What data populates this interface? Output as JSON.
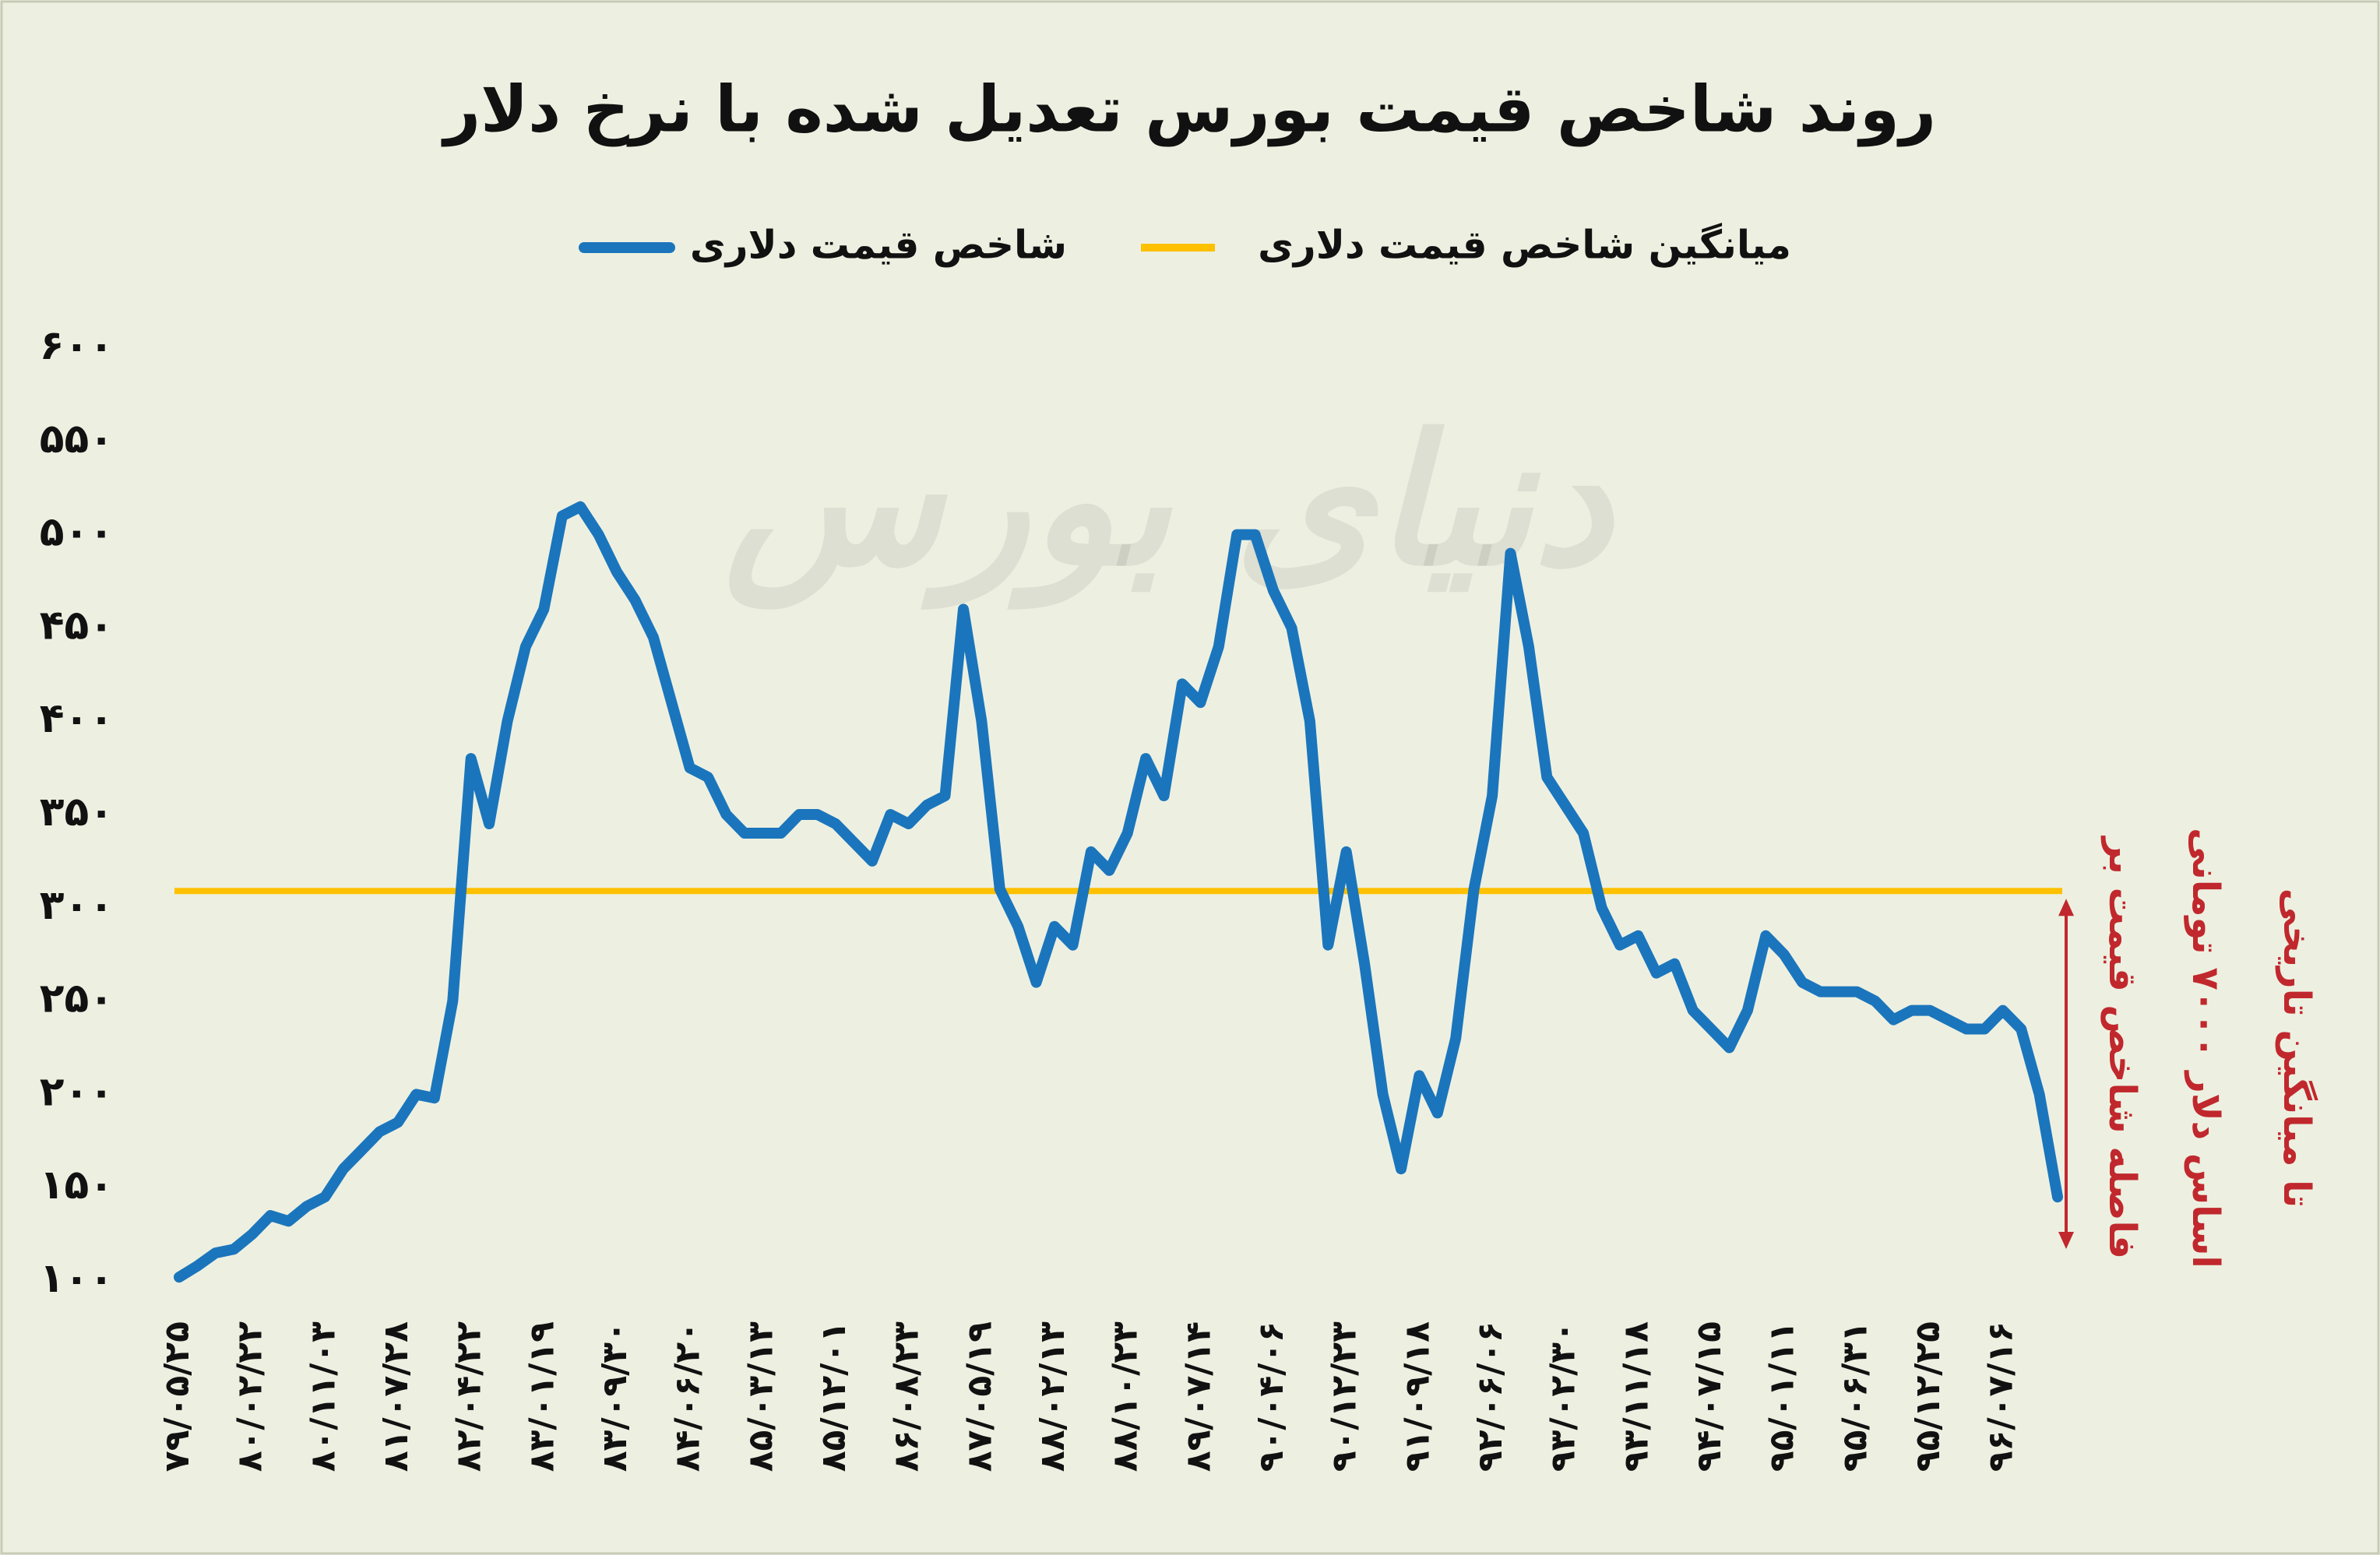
{
  "chart_data": {
    "type": "line",
    "title": "روند شاخص قیمت بورس تعدیل شده با نرخ دلار",
    "watermark": "دنیای بورس",
    "categories": [
      "۷۹/۰۵/۲۵",
      null,
      null,
      null,
      "۸۰/۰۲/۲۲",
      null,
      null,
      null,
      "۸۰/۱۱/۰۳",
      null,
      null,
      null,
      "۸۱/۰۷/۲۸",
      null,
      null,
      null,
      "۸۲/۰۴/۲۲",
      null,
      null,
      null,
      "۸۳/۰۱/۱۹",
      null,
      null,
      null,
      "۸۳/۰۹/۳۰",
      null,
      null,
      null,
      "۸۴/۰۶/۲۰",
      null,
      null,
      null,
      "۸۵/۰۳/۱۳",
      null,
      null,
      null,
      "۸۵/۱۲/۰۱",
      null,
      null,
      null,
      "۸۶/۰۸/۲۳",
      null,
      null,
      null,
      "۸۷/۰۵/۱۹",
      null,
      null,
      null,
      "۸۸/۰۲/۱۳",
      null,
      null,
      null,
      "۸۸/۱۰/۲۳",
      null,
      null,
      null,
      "۸۹/۰۷/۱۴",
      null,
      null,
      null,
      "۹۰/۰۴/۰۶",
      null,
      null,
      null,
      "۹۰/۱۲/۲۳",
      null,
      null,
      null,
      "۹۱/۰۹/۱۸",
      null,
      null,
      null,
      "۹۲/۰۶/۰۶",
      null,
      null,
      null,
      "۹۳/۰۲/۳۰",
      null,
      null,
      null,
      "۹۳/۱۱/۱۸",
      null,
      null,
      null,
      "۹۴/۰۷/۱۵",
      null,
      null,
      null,
      "۹۵/۰۱/۱۱",
      null,
      null,
      null,
      "۹۵/۰۶/۳۱",
      null,
      null,
      null,
      "۹۵/۱۲/۲۵",
      null,
      null,
      null,
      "۹۶/۰۷/۱۶",
      null,
      null,
      null
    ],
    "series": [
      {
        "name": "شاخص قیمت دلاری",
        "color": "#1b75bc",
        "values": [
          102,
          108,
          115,
          117,
          125,
          135,
          132,
          140,
          145,
          160,
          170,
          180,
          185,
          200,
          198,
          250,
          380,
          345,
          400,
          440,
          460,
          510,
          515,
          500,
          480,
          465,
          445,
          410,
          375,
          370,
          350,
          340,
          340,
          340,
          350,
          350,
          345,
          335,
          325,
          350,
          345,
          355,
          360,
          460,
          400,
          310,
          290,
          260,
          290,
          280,
          330,
          320,
          340,
          380,
          360,
          420,
          410,
          440,
          500,
          500,
          470,
          450,
          400,
          280,
          330,
          270,
          200,
          160,
          210,
          190,
          230,
          310,
          360,
          490,
          440,
          370,
          355,
          340,
          300,
          280,
          285,
          265,
          270,
          245,
          235,
          225,
          245,
          285,
          275,
          260,
          255,
          255,
          255,
          250,
          240,
          245,
          245,
          240,
          235,
          235,
          245,
          235,
          200,
          145
        ]
      }
    ],
    "reference_line": {
      "name": "میانگین شاخص قیمت دلاری",
      "value": 309,
      "color": "#ffc000"
    },
    "annotation": [
      "فاصله شاخص قیمت بر",
      "اساس دلار ۷۰۰۰ تومانی",
      "تا میانگین تاریخی"
    ],
    "ylim": [
      100,
      600
    ],
    "yticks": [
      {
        "value": 100,
        "label": "۱۰۰"
      },
      {
        "value": 150,
        "label": "۱۵۰"
      },
      {
        "value": 200,
        "label": "۲۰۰"
      },
      {
        "value": 250,
        "label": "۲۵۰"
      },
      {
        "value": 300,
        "label": "۳۰۰"
      },
      {
        "value": 350,
        "label": "۳۵۰"
      },
      {
        "value": 400,
        "label": "۴۰۰"
      },
      {
        "value": 450,
        "label": "۴۵۰"
      },
      {
        "value": 500,
        "label": "۵۰۰"
      },
      {
        "value": 550,
        "label": "۵۵۰"
      },
      {
        "value": 600,
        "label": "۶۰۰"
      }
    ],
    "grid": false
  }
}
